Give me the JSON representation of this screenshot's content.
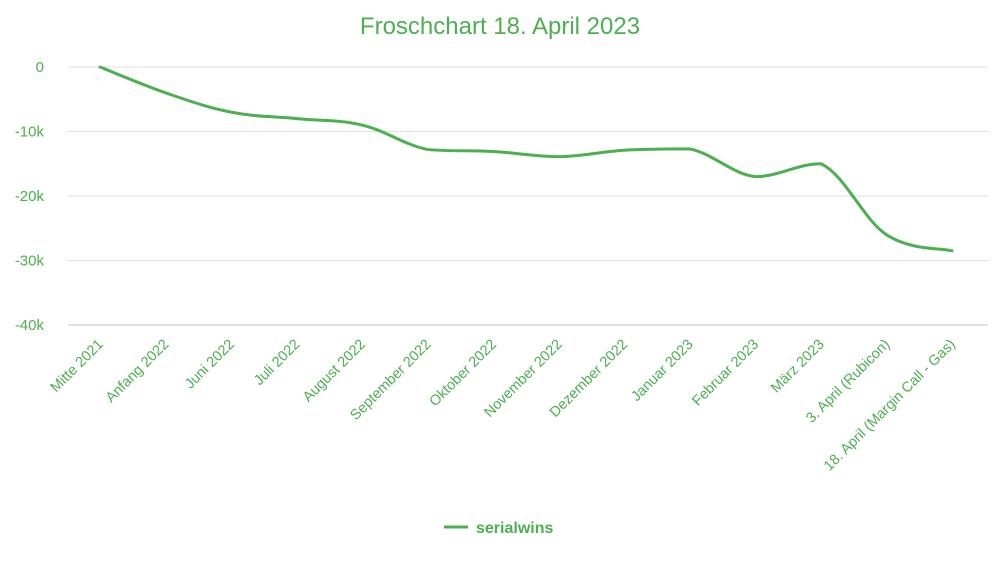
{
  "chart_data": {
    "type": "line",
    "title": "Froschchart 18. April 2023",
    "xlabel": "",
    "ylabel": "",
    "categories": [
      "Mitte 2021",
      "Anfang 2022",
      "Juni 2022",
      "Juli 2022",
      "August 2022",
      "September 2022",
      "Oktober 2022",
      "November 2022",
      "Dezember 2022",
      "Januar 2023",
      "Februar 2023",
      "März 2023",
      "3. April (Rubicon)",
      "18. April (Margin Call - Gas)"
    ],
    "series": [
      {
        "name": "serialwins",
        "color": "#4caf50",
        "values": [
          0,
          -4000,
          -7000,
          -8000,
          -9000,
          -12800,
          -13100,
          -13900,
          -12900,
          -12700,
          -17000,
          -15000,
          -26000,
          -28500
        ]
      }
    ],
    "ylim": [
      -40000,
      0
    ],
    "yticks": [
      0,
      -10000,
      -20000,
      -30000,
      -40000
    ],
    "ytick_labels": [
      "0",
      "-10k",
      "-20k",
      "-30k",
      "-40k"
    ],
    "grid": true,
    "legend_position": "bottom"
  }
}
